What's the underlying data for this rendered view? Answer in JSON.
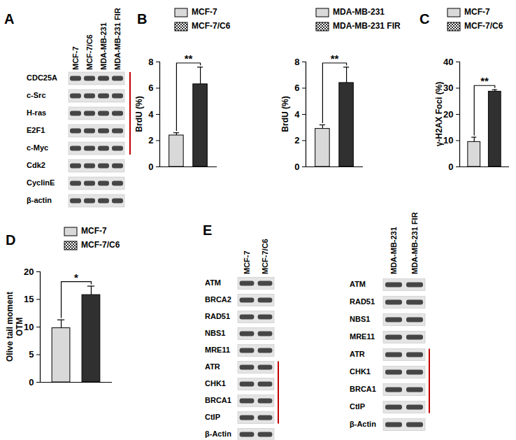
{
  "panels": [
    "A",
    "B",
    "C",
    "D",
    "E"
  ],
  "blots": [
    {
      "panel": "A",
      "lanes": [
        "MCF-7",
        "MCF-7/C6",
        "MDA-MB-231",
        "MDA-MB-231 FIR"
      ],
      "rows": [
        "CDC25A",
        "c-Src",
        "H-ras",
        "E2F1",
        "c-Myc",
        "Cdk2",
        "CyclinE",
        "β-actin"
      ],
      "marked_rows": [
        "CDC25A",
        "c-Src",
        "H-ras",
        "E2F1",
        "c-Myc"
      ]
    },
    {
      "panel": "E",
      "lanes": [
        "MCF-7",
        "MCF-7/C6"
      ],
      "rows": [
        "ATM",
        "BRCA2",
        "RAD51",
        "NBS1",
        "MRE11",
        "ATR",
        "CHK1",
        "BRCA1",
        "CtIP",
        "β-Actin"
      ],
      "marked_rows": [
        "ATR",
        "CHK1",
        "BRCA1",
        "CtIP"
      ]
    },
    {
      "panel": "E",
      "lanes": [
        "MDA-MB-231",
        "MDA-MB-231 FIR"
      ],
      "rows": [
        "ATM",
        "RAD51",
        "NBS1",
        "MRE11",
        "ATR",
        "CHK1",
        "BRCA1",
        "CtIP",
        "β-Actin"
      ],
      "marked_rows": [
        "ATR",
        "CHK1",
        "BRCA1",
        "CtIP"
      ]
    }
  ],
  "chart_data": [
    {
      "panel": "B",
      "type": "bar",
      "categories": [
        "MCF-7",
        "MCF-7/C6"
      ],
      "values": [
        2.4,
        6.3
      ],
      "errors": [
        0.2,
        1.3
      ],
      "colors": [
        "#d9d9d9",
        "#303030"
      ],
      "ylabel": "BrdU (%)",
      "ylim": [
        0,
        8
      ],
      "yticks": [
        0,
        2,
        4,
        6,
        8
      ],
      "annotation": "**",
      "legend": "top",
      "tick_labels": "y"
    },
    {
      "panel": "B",
      "type": "bar",
      "categories": [
        "MDA-MB-231",
        "MDA-MB-231 FIR"
      ],
      "values": [
        2.9,
        6.4
      ],
      "errors": [
        0.3,
        1.2
      ],
      "colors": [
        "#d9d9d9",
        "#303030"
      ],
      "ylabel": "BrdU (%)",
      "ylim": [
        0,
        8
      ],
      "yticks": [
        0,
        2,
        4,
        6,
        8
      ],
      "annotation": "**",
      "legend": "top",
      "tick_labels": "y"
    },
    {
      "panel": "C",
      "type": "bar",
      "categories": [
        "MCF-7",
        "MCF-7/C6"
      ],
      "values": [
        9.5,
        28.7
      ],
      "errors": [
        1.8,
        0.7
      ],
      "colors": [
        "#d9d9d9",
        "#303030"
      ],
      "ylabel": "γ-H2AX Foci (%)",
      "ylim": [
        0,
        40
      ],
      "yticks": [
        0,
        10,
        20,
        30,
        40
      ],
      "annotation": "**",
      "legend": "top",
      "tick_labels": "y"
    },
    {
      "panel": "D",
      "type": "bar",
      "categories": [
        "MCF-7",
        "MCF-7/C6"
      ],
      "values": [
        9.8,
        15.8
      ],
      "errors": [
        1.5,
        1.6
      ],
      "colors": [
        "#d9d9d9",
        "#303030"
      ],
      "ylabel": "Olive tail moment\nOTM",
      "ylim": [
        0,
        20
      ],
      "yticks": [
        0,
        5,
        10,
        15,
        20
      ],
      "annotation": "*",
      "legend": "top",
      "tick_labels": "y"
    }
  ]
}
